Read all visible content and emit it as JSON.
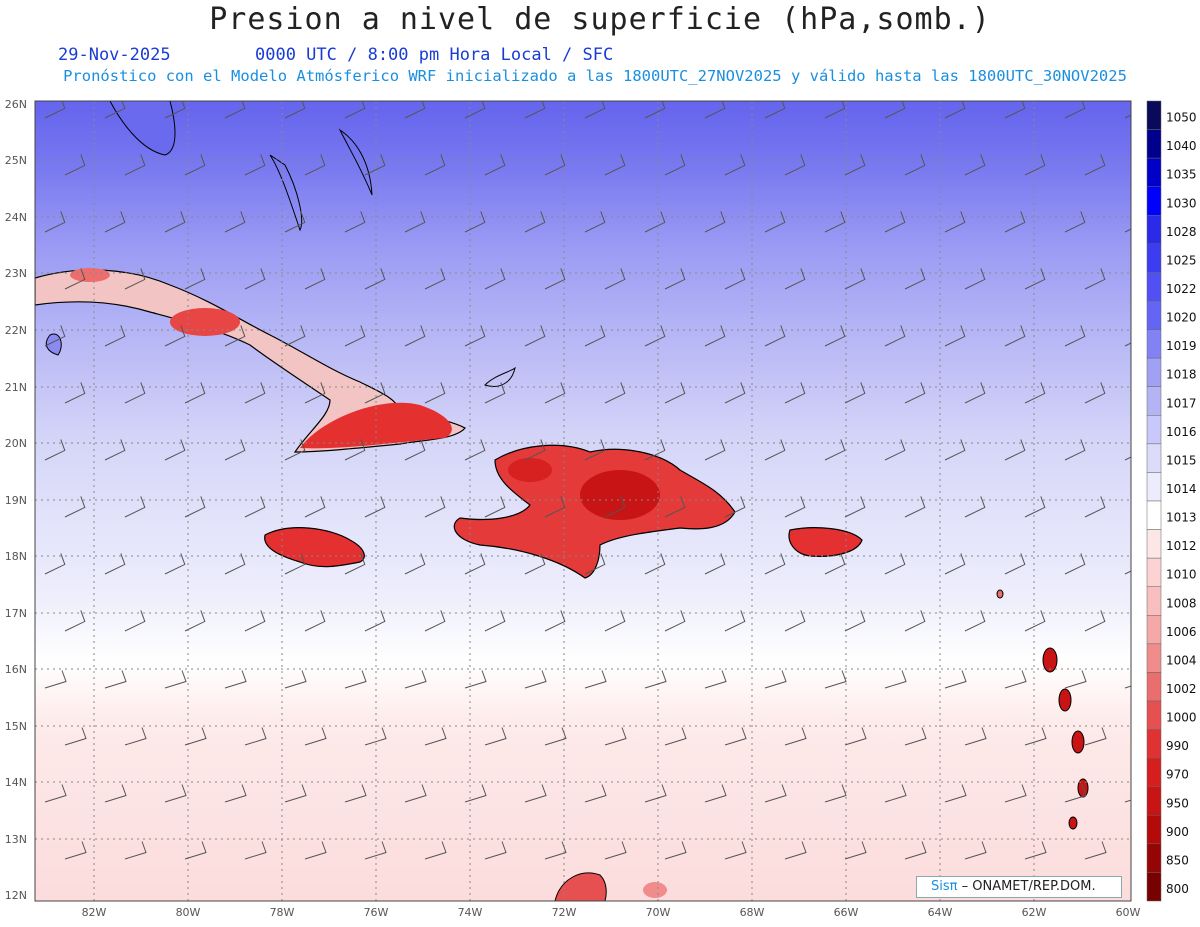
{
  "header": {
    "title": "Presion a nivel de superficie (hPa,somb.)",
    "date": "29-Nov-2025",
    "time": "0000 UTC / 8:00 pm Hora Local / SFC",
    "forecast": "Pronóstico con el Modelo Atmósferico WRF inicializado a las 1800UTC_27NOV2025 y válido hasta las  1800UTC_30NOV2025"
  },
  "latitude_labels": [
    "26N",
    "25N",
    "24N",
    "23N",
    "22N",
    "21N",
    "20N",
    "19N",
    "18N",
    "17N",
    "16N",
    "15N",
    "14N",
    "13N",
    "12N"
  ],
  "longitude_labels": [
    "82W",
    "80W",
    "78W",
    "76W",
    "74W",
    "72W",
    "70W",
    "68W",
    "66W",
    "64W",
    "62W",
    "60W"
  ],
  "colorbar": {
    "levels": [
      "1050",
      "1040",
      "1035",
      "1030",
      "1028",
      "1025",
      "1022",
      "1020",
      "1019",
      "1018",
      "1017",
      "1016",
      "1015",
      "1014",
      "1013",
      "1012",
      "1010",
      "1008",
      "1006",
      "1004",
      "1002",
      "1000",
      "990",
      "970",
      "950",
      "900",
      "850",
      "800"
    ],
    "colors": [
      "#0a0a5a",
      "#00008c",
      "#0000c8",
      "#0000ff",
      "#2a2ae8",
      "#3c3cf0",
      "#5050f5",
      "#6464f5",
      "#8282f5",
      "#a0a0f5",
      "#b4b4f5",
      "#c8c8fa",
      "#dcdcfa",
      "#ececfc",
      "#ffffff",
      "#fde6e6",
      "#fcd2d2",
      "#f9bebe",
      "#f5a8a8",
      "#f08c8c",
      "#eb6e6e",
      "#e65050",
      "#e03232",
      "#d71e1e",
      "#c81414",
      "#b40a0a",
      "#960505",
      "#780000"
    ]
  },
  "credit": {
    "brand": "Sisπ",
    "text": "– ONAMET/REP.DOM."
  }
}
